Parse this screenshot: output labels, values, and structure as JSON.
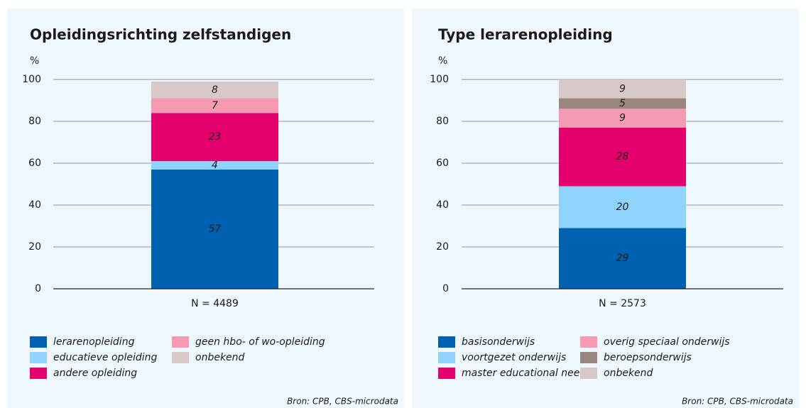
{
  "chart_data": [
    {
      "type": "bar",
      "stacked": true,
      "title": "Opleidingsrichting zelfstandigen",
      "ylabel": "%",
      "categories": [
        "N = 4489"
      ],
      "ylim": [
        0,
        100
      ],
      "yticks": [
        0,
        20,
        40,
        60,
        80,
        100
      ],
      "grid": true,
      "series": [
        {
          "name": "lerarenopleiding",
          "color": "#0061b0",
          "values": [
            57
          ]
        },
        {
          "name": "educatieve opleiding",
          "color": "#8ed3fb",
          "values": [
            4
          ]
        },
        {
          "name": "andere opleiding",
          "color": "#e4006d",
          "values": [
            23
          ]
        },
        {
          "name": "geen hbo- of wo-opleiding",
          "color": "#f49ab2",
          "values": [
            7
          ]
        },
        {
          "name": "onbekend",
          "color": "#d8c8c7",
          "values": [
            8
          ]
        }
      ],
      "source": "Bron: CPB, CBS-microdata"
    },
    {
      "type": "bar",
      "stacked": true,
      "title": "Type lerarenopleiding",
      "ylabel": "%",
      "categories": [
        "N = 2573"
      ],
      "ylim": [
        0,
        100
      ],
      "yticks": [
        0,
        20,
        40,
        60,
        80,
        100
      ],
      "grid": true,
      "series": [
        {
          "name": "basisonderwijs",
          "color": "#0061b0",
          "values": [
            29
          ]
        },
        {
          "name": "voortgezet onderwijs",
          "color": "#8ed3fb",
          "values": [
            20
          ]
        },
        {
          "name": "master educational needs",
          "color": "#e4006d",
          "values": [
            28
          ]
        },
        {
          "name": "overig speciaal onderwijs",
          "color": "#f49ab2",
          "values": [
            9
          ]
        },
        {
          "name": "beroepsonderwijs",
          "color": "#9a8680",
          "values": [
            5
          ]
        },
        {
          "name": "onbekend",
          "color": "#d8c8c7",
          "values": [
            9
          ]
        }
      ],
      "source": "Bron: CPB, CBS-microdata"
    }
  ]
}
